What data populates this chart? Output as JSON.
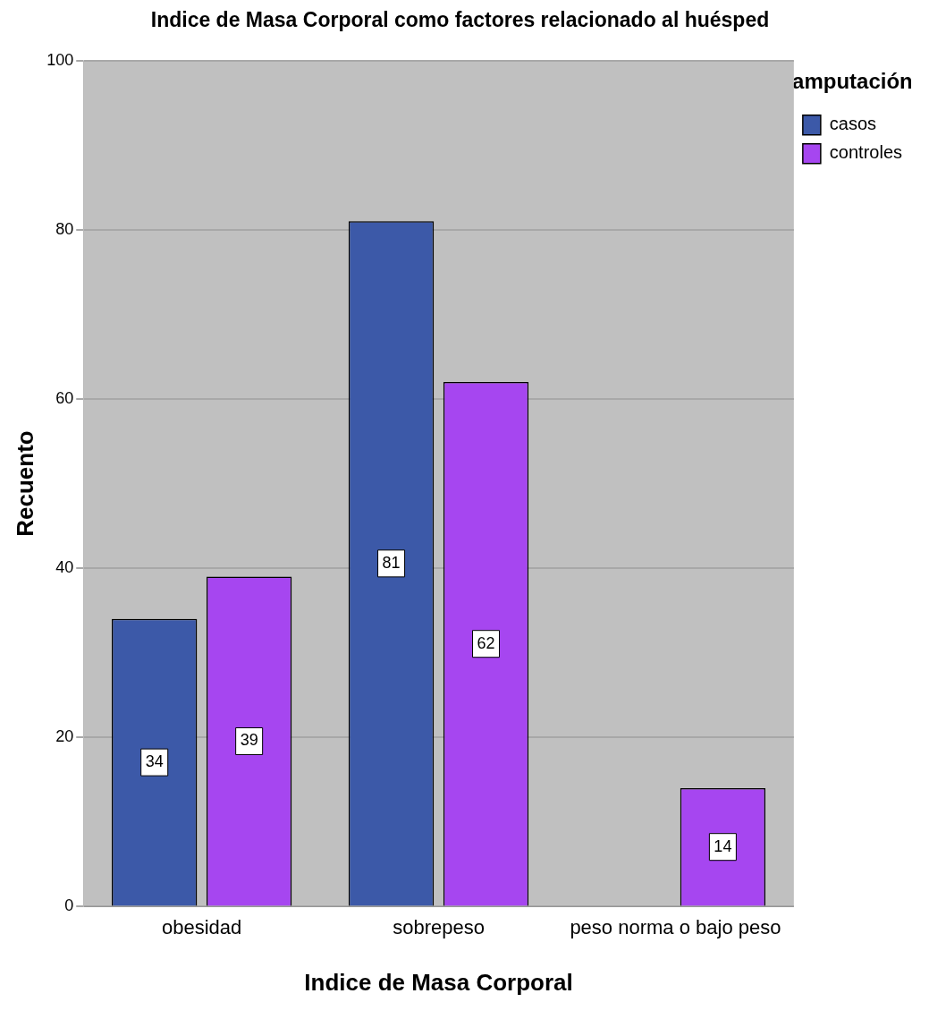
{
  "chart_data": {
    "type": "bar",
    "title": "Indice de Masa Corporal como factores relacionado al huésped",
    "xlabel": "Indice de Masa Corporal",
    "ylabel": "Recuento",
    "legend_title": "amputación",
    "categories": [
      "obesidad",
      "sobrepeso",
      "peso norma o bajo peso"
    ],
    "series": [
      {
        "name": "casos",
        "color": "#3c59a8",
        "values": [
          34,
          81,
          null
        ]
      },
      {
        "name": "controles",
        "color": "#a646f0",
        "values": [
          39,
          62,
          14
        ]
      }
    ],
    "ylim": [
      0,
      100
    ],
    "yticks": [
      0,
      20,
      40,
      60,
      80,
      100
    ],
    "grid": "y",
    "legend": "top right",
    "data_labels": true
  }
}
